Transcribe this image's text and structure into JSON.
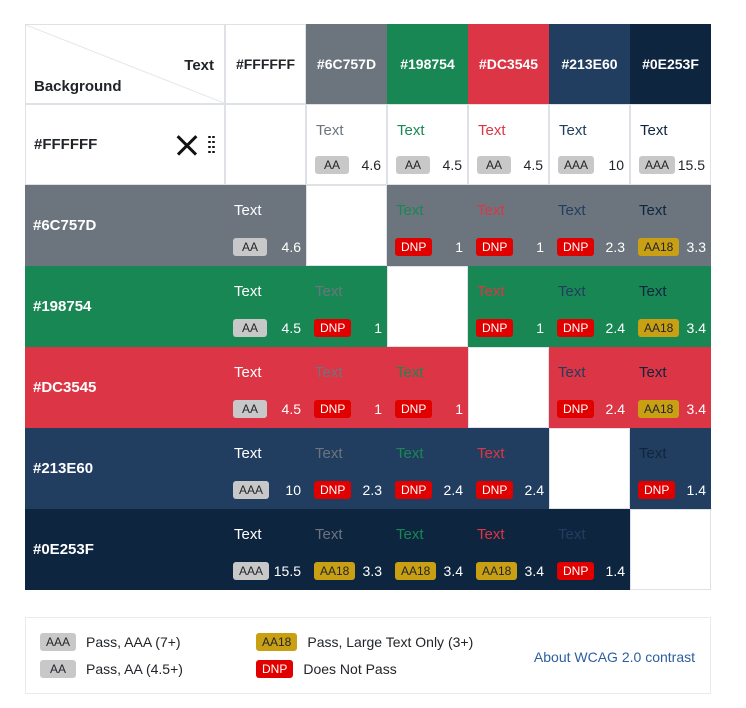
{
  "corner": {
    "text_label": "Text",
    "background_label": "Background"
  },
  "colors": [
    {
      "hex": "#FFFFFF",
      "label": "#FFFFFF"
    },
    {
      "hex": "#6C757D",
      "label": "#6C757D"
    },
    {
      "hex": "#198754",
      "label": "#198754"
    },
    {
      "hex": "#DC3545",
      "label": "#DC3545"
    },
    {
      "hex": "#213E60",
      "label": "#213E60"
    },
    {
      "hex": "#0E253F",
      "label": "#0E253F"
    }
  ],
  "sample_text": "Text",
  "row_controls": {
    "remove_icon": "close-icon",
    "drag_icon": "drag-handle-icon"
  },
  "matrix": [
    [
      null,
      {
        "badge": "AA",
        "ratio": "4.6"
      },
      {
        "badge": "AA",
        "ratio": "4.5"
      },
      {
        "badge": "AA",
        "ratio": "4.5"
      },
      {
        "badge": "AAA",
        "ratio": "10"
      },
      {
        "badge": "AAA",
        "ratio": "15.5"
      }
    ],
    [
      {
        "badge": "AA",
        "ratio": "4.6"
      },
      null,
      {
        "badge": "DNP",
        "ratio": "1"
      },
      {
        "badge": "DNP",
        "ratio": "1"
      },
      {
        "badge": "DNP",
        "ratio": "2.3"
      },
      {
        "badge": "AA18",
        "ratio": "3.3"
      }
    ],
    [
      {
        "badge": "AA",
        "ratio": "4.5"
      },
      {
        "badge": "DNP",
        "ratio": "1"
      },
      null,
      {
        "badge": "DNP",
        "ratio": "1"
      },
      {
        "badge": "DNP",
        "ratio": "2.4"
      },
      {
        "badge": "AA18",
        "ratio": "3.4"
      }
    ],
    [
      {
        "badge": "AA",
        "ratio": "4.5"
      },
      {
        "badge": "DNP",
        "ratio": "1"
      },
      {
        "badge": "DNP",
        "ratio": "1"
      },
      null,
      {
        "badge": "DNP",
        "ratio": "2.4"
      },
      {
        "badge": "AA18",
        "ratio": "3.4"
      }
    ],
    [
      {
        "badge": "AAA",
        "ratio": "10"
      },
      {
        "badge": "DNP",
        "ratio": "2.3"
      },
      {
        "badge": "DNP",
        "ratio": "2.4"
      },
      {
        "badge": "DNP",
        "ratio": "2.4"
      },
      null,
      {
        "badge": "DNP",
        "ratio": "1.4"
      }
    ],
    [
      {
        "badge": "AAA",
        "ratio": "15.5"
      },
      {
        "badge": "AA18",
        "ratio": "3.3"
      },
      {
        "badge": "AA18",
        "ratio": "3.4"
      },
      {
        "badge": "AA18",
        "ratio": "3.4"
      },
      {
        "badge": "DNP",
        "ratio": "1.4"
      },
      null
    ]
  ],
  "legend": {
    "items": [
      {
        "badge": "AAA",
        "label": "Pass, AAA (7+)"
      },
      {
        "badge": "AA",
        "label": "Pass, AA (4.5+)"
      },
      {
        "badge": "AA18",
        "label": "Pass, Large Text Only (3+)"
      },
      {
        "badge": "DNP",
        "label": "Does Not Pass"
      }
    ],
    "link_text": "About WCAG 2.0 contrast"
  }
}
